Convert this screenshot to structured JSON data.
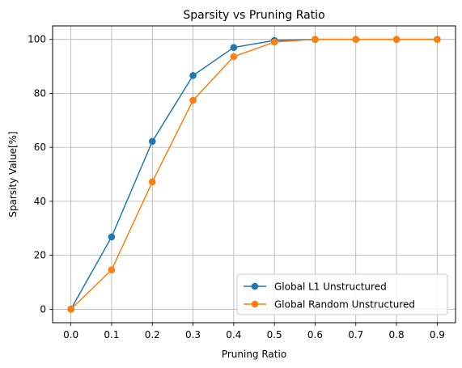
{
  "chart_data": {
    "type": "line",
    "title": "Sparsity vs Pruning Ratio",
    "xlabel": "Pruning Ratio",
    "ylabel": "Sparsity Value[%]",
    "x": [
      0.0,
      0.1,
      0.2,
      0.3,
      0.4,
      0.5,
      0.6,
      0.7,
      0.8,
      0.9
    ],
    "xticks": [
      "0.0",
      "0.1",
      "0.2",
      "0.3",
      "0.4",
      "0.5",
      "0.6",
      "0.7",
      "0.8",
      "0.9"
    ],
    "yticks": [
      "0",
      "20",
      "40",
      "60",
      "80",
      "100"
    ],
    "xlim": [
      -0.045,
      0.945
    ],
    "ylim": [
      -5,
      105
    ],
    "grid": true,
    "legend_position": "lower-right",
    "series": [
      {
        "name": "Global L1 Unstructured",
        "color": "#1f77b4",
        "values": [
          0,
          26.8,
          62.2,
          86.6,
          97.0,
          99.6,
          100,
          100,
          100,
          100
        ]
      },
      {
        "name": "Global Random Unstructured",
        "color": "#ff7f0e",
        "values": [
          0,
          14.6,
          47.2,
          77.4,
          93.6,
          99.0,
          100,
          100,
          100,
          100
        ]
      }
    ]
  }
}
